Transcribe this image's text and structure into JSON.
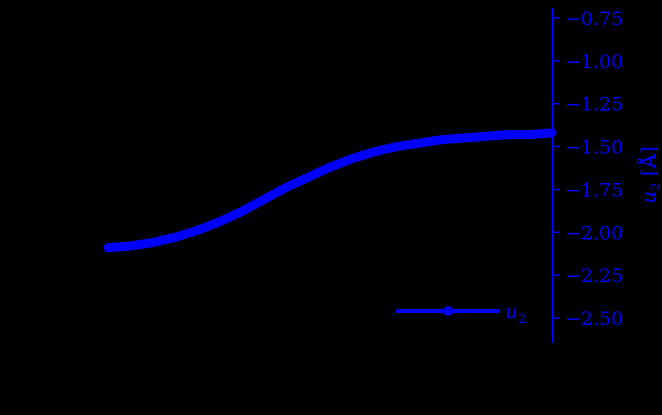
{
  "chart_data": {
    "type": "line",
    "title": "",
    "xlabel": "",
    "ylabel": "u_2 [Å]",
    "y_axis_side": "right",
    "ylim": [
      -2.62,
      -0.68
    ],
    "yticks": [
      -0.75,
      -1.0,
      -1.25,
      -1.5,
      -1.75,
      -2.0,
      -2.25,
      -2.5
    ],
    "ytick_labels": [
      "−0.75",
      "−1.00",
      "−1.25",
      "−1.50",
      "−1.75",
      "−2.00",
      "−2.25",
      "−2.50"
    ],
    "grid": false,
    "legend_position": "lower right",
    "series": [
      {
        "name": "u_2",
        "color": "#0000ff",
        "marker": "circle",
        "x_fraction": [
          0.0,
          0.05,
          0.1,
          0.15,
          0.2,
          0.25,
          0.3,
          0.35,
          0.4,
          0.45,
          0.5,
          0.55,
          0.6,
          0.65,
          0.7,
          0.75,
          0.8,
          0.85,
          0.9,
          0.95,
          1.0
        ],
        "values": [
          -2.09,
          -2.08,
          -2.06,
          -2.03,
          -1.99,
          -1.94,
          -1.88,
          -1.81,
          -1.74,
          -1.68,
          -1.62,
          -1.57,
          -1.53,
          -1.5,
          -1.48,
          -1.46,
          -1.45,
          -1.44,
          -1.43,
          -1.43,
          -1.42
        ]
      }
    ]
  },
  "axis": {
    "ylabel_var": "u",
    "ylabel_sub": "2",
    "ylabel_unit": "[Å]"
  },
  "legend": {
    "label_var": "u",
    "label_sub": "2"
  }
}
